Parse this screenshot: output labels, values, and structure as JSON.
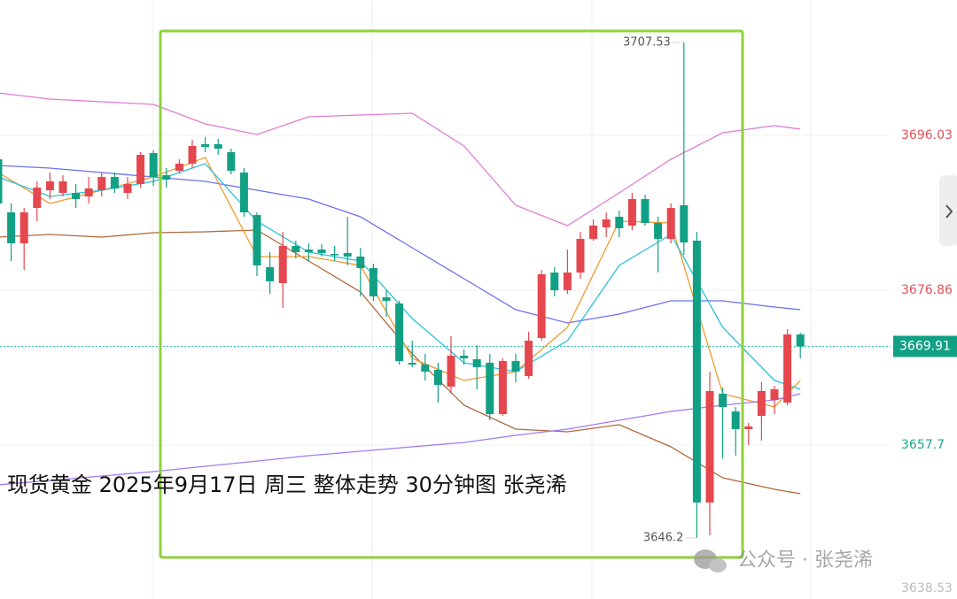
{
  "chart_data": {
    "type": "candlestick",
    "title": "现货黄金 2025年9月17日 周三 整体走势 30分钟图 张尧浠",
    "watermark": "公众号 · 张尧浠",
    "categories": [
      null,
      null,
      null,
      null,
      null,
      null,
      null,
      null,
      null,
      null,
      null,
      null,
      null,
      null,
      null,
      null,
      null,
      null,
      null,
      null,
      null,
      null,
      null,
      null,
      null,
      null,
      null,
      null,
      null,
      null,
      null,
      null,
      null,
      null,
      null,
      null,
      null,
      null,
      null,
      null,
      null,
      null,
      null,
      null,
      null,
      null,
      null,
      null,
      null,
      null,
      null,
      null,
      null,
      null,
      null,
      null,
      null,
      null,
      null,
      null,
      null,
      null,
      null
    ],
    "open": [
      3693.07,
      3686.5,
      3682.67,
      3687.05,
      3689.24,
      3688.91,
      3688.91,
      3688.47,
      3689.24,
      3690.88,
      3688.91,
      3690.01,
      3693.84,
      3691.1,
      3691.65,
      3692.53,
      3694.94,
      3694.94,
      3693.95,
      3691.43,
      3686.17,
      3679.71,
      3677.74,
      3682.34,
      3681.9,
      3681.9,
      3681.35,
      3681.46,
      3681.03,
      3679.6,
      3675.99,
      3675.22,
      3667.88,
      3667.66,
      3667.01,
      3664.93,
      3668.76,
      3668.32,
      3667.88,
      3661.53,
      3668.1,
      3666.24,
      3670.95,
      3679.05,
      3676.86,
      3679.05,
      3683.22,
      3684.64,
      3685.96,
      3684.86,
      3688.15,
      3685.19,
      3683.22,
      3687.38,
      3683.0,
      3650.58,
      3664.05,
      3661.86,
      3659.67,
      3661.31,
      3663.28,
      3662.95,
      3671.39
    ],
    "high": [
      3693.62,
      3687.6,
      3687.05,
      3690.34,
      3691.43,
      3691.1,
      3690.01,
      3690.88,
      3691.43,
      3691.43,
      3690.88,
      3693.95,
      3694.17,
      3691.98,
      3693.07,
      3695.48,
      3695.81,
      3695.59,
      3694.39,
      3691.98,
      3686.5,
      3681.57,
      3684.09,
      3683.0,
      3682.67,
      3682.56,
      3682.34,
      3685.96,
      3682.12,
      3680.15,
      3676.86,
      3675.55,
      3670.62,
      3668.98,
      3667.88,
      3671.17,
      3669.53,
      3670.07,
      3668.98,
      3668.43,
      3668.98,
      3671.72,
      3679.38,
      3679.71,
      3681.9,
      3684.09,
      3685.63,
      3686.5,
      3686.72,
      3688.91,
      3688.69,
      3685.96,
      3687.6,
      3707.53,
      3684.09,
      3666.79,
      3664.82,
      3662.41,
      3660.43,
      3665.47,
      3665.03,
      3672.04,
      3671.61
    ],
    "low": [
      3686.5,
      3680.48,
      3679.38,
      3685.41,
      3688.15,
      3688.47,
      3687.05,
      3687.6,
      3688.47,
      3688.91,
      3688.15,
      3689.57,
      3689.79,
      3689.57,
      3691.32,
      3691.98,
      3693.95,
      3693.62,
      3691.21,
      3685.96,
      3678.62,
      3676.43,
      3674.67,
      3680.81,
      3680.48,
      3681.03,
      3680.48,
      3679.93,
      3676.1,
      3675.55,
      3673.58,
      3667.66,
      3667.34,
      3665.69,
      3662.95,
      3664.05,
      3667.66,
      3664.6,
      3660.76,
      3661.31,
      3665.47,
      3665.91,
      3670.62,
      3676.1,
      3676.43,
      3678.29,
      3683.0,
      3683.44,
      3683.44,
      3684.31,
      3684.86,
      3679.05,
      3682.67,
      3681.25,
      3646.2,
      3646.52,
      3656.05,
      3656.38,
      3657.7,
      3658.24,
      3661.53,
      3662.63,
      3668.43
    ],
    "close": [
      3687.6,
      3682.67,
      3686.5,
      3689.57,
      3690.34,
      3690.34,
      3688.15,
      3689.46,
      3690.88,
      3689.46,
      3690.01,
      3693.62,
      3690.88,
      3690.56,
      3692.53,
      3694.72,
      3694.61,
      3694.39,
      3691.65,
      3686.5,
      3679.93,
      3677.96,
      3682.34,
      3681.57,
      3681.57,
      3681.46,
      3681.25,
      3681.03,
      3679.6,
      3676.1,
      3675.55,
      3668.1,
      3667.66,
      3666.79,
      3665.14,
      3668.76,
      3668.43,
      3667.34,
      3661.53,
      3668.1,
      3666.79,
      3670.62,
      3678.84,
      3676.86,
      3679.05,
      3683.22,
      3684.86,
      3685.63,
      3684.53,
      3688.15,
      3685.19,
      3683.22,
      3687.05,
      3682.78,
      3650.58,
      3664.38,
      3662.41,
      3659.67,
      3660.0,
      3664.38,
      3664.6,
      3671.39,
      3669.91
    ],
    "up_color": "#e5474f",
    "down_color": "#12a085",
    "lines": [
      {
        "color": "#e27bd4",
        "x": [
          0,
          4,
          8,
          12,
          16,
          20,
          24,
          28,
          32,
          36,
          40,
          44,
          48,
          52,
          56,
          60,
          62
        ],
        "values": [
          3701.29,
          3700.52,
          3700.19,
          3699.87,
          3697.46,
          3696.14,
          3698.33,
          3698.55,
          3698.77,
          3694.72,
          3687.38,
          3684.86,
          3688.91,
          3693.07,
          3696.36,
          3697.24,
          3696.8
        ]
      },
      {
        "color": "#6b70ee",
        "x": [
          0,
          4,
          8,
          12,
          16,
          20,
          24,
          28,
          32,
          36,
          40,
          44,
          48,
          52,
          56,
          60,
          62
        ],
        "values": [
          3692.31,
          3691.98,
          3691.43,
          3690.88,
          3690.34,
          3689.24,
          3688.15,
          3685.96,
          3682.12,
          3678.29,
          3674.45,
          3672.81,
          3673.91,
          3675.55,
          3675.55,
          3674.78,
          3674.45
        ]
      },
      {
        "color": "#b0683a",
        "x": [
          0,
          4,
          8,
          12,
          16,
          20,
          24,
          28,
          32,
          36,
          40,
          44,
          48,
          52,
          56,
          60,
          62
        ],
        "values": [
          3683.44,
          3683.76,
          3683.44,
          3683.98,
          3684.09,
          3684.31,
          3680.48,
          3676.65,
          3668.98,
          3662.63,
          3659.67,
          3659.34,
          3660.22,
          3657.48,
          3653.64,
          3652.22,
          3651.67
        ]
      },
      {
        "color": "#f29a2e",
        "x": [
          0,
          4,
          8,
          12,
          16,
          20,
          24,
          28,
          32,
          36,
          40,
          44,
          48,
          52,
          56,
          60,
          62
        ],
        "values": [
          3691.43,
          3687.6,
          3689.24,
          3690.88,
          3693.29,
          3681.03,
          3681.03,
          3679.93,
          3668.43,
          3665.69,
          3666.79,
          3672.26,
          3685.41,
          3685.19,
          3664.05,
          3662.41,
          3665.69
        ]
      },
      {
        "color": "#2cc2d6",
        "x": [
          0,
          4,
          8,
          12,
          16,
          20,
          24,
          28,
          32,
          36,
          40,
          44,
          48,
          52,
          56,
          60,
          62
        ],
        "values": [
          3690.88,
          3688.47,
          3689.24,
          3690.34,
          3692.53,
          3685.41,
          3681.57,
          3680.48,
          3673.36,
          3667.88,
          3666.79,
          3670.62,
          3679.93,
          3683.76,
          3672.26,
          3665.69,
          3664.6
        ]
      },
      {
        "color": "#a07cf0",
        "x": [
          0,
          4,
          8,
          12,
          16,
          20,
          24,
          28,
          32,
          36,
          40,
          44,
          48,
          52,
          56,
          60,
          62
        ],
        "values": [
          3652.77,
          3653.32,
          3653.86,
          3654.41,
          3655.07,
          3655.72,
          3656.38,
          3656.93,
          3657.48,
          3658.02,
          3658.9,
          3659.67,
          3660.76,
          3661.86,
          3662.63,
          3663.28,
          3664.05
        ]
      }
    ],
    "max_index": 53,
    "min_index": 54,
    "ylim": [
      3638.64,
      3712.79
    ],
    "yticks": [
      3696.03,
      3676.86,
      3657.7,
      3638.53
    ],
    "grid": true
  }
}
